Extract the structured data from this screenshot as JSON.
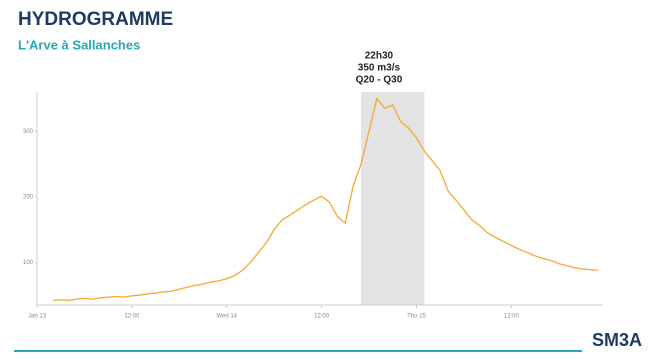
{
  "chart_data": {
    "type": "line",
    "title": "HYDROGRAMME",
    "subtitle": "L'Arve à Sallanches",
    "annotation": [
      "22h30",
      "350 m3/s",
      "Q20 - Q30"
    ],
    "highlight": [
      41,
      49
    ],
    "annotation_x": 43,
    "logo": "SM3A",
    "xlim": [
      0,
      71.6
    ],
    "ylim": [
      35,
      360
    ],
    "xticks": [
      {
        "value": 0,
        "label": "Jan 13"
      },
      {
        "value": 12,
        "label": "12:00"
      },
      {
        "value": 24,
        "label": "Wed 14"
      },
      {
        "value": 36,
        "label": "12:00"
      },
      {
        "value": 48,
        "label": "Thu 15"
      },
      {
        "value": 60,
        "label": "12:00"
      }
    ],
    "yticks": [
      100,
      200,
      300
    ],
    "series": [
      {
        "color": "#f6a932",
        "x": [
          2,
          3,
          4,
          5,
          6,
          7,
          8,
          9,
          10,
          11,
          12,
          13,
          14,
          15,
          16,
          17,
          18,
          19,
          20,
          21,
          22,
          23,
          24,
          25,
          26,
          27,
          28,
          29,
          30,
          31,
          32,
          33,
          34,
          35,
          36,
          37,
          38,
          39,
          40,
          41,
          42,
          43,
          44,
          45,
          46,
          47,
          48,
          49,
          50,
          51,
          52,
          53,
          54,
          55,
          56,
          57,
          58,
          59,
          60,
          61,
          62,
          63,
          64,
          65,
          66,
          67,
          68,
          69,
          70,
          71
        ],
        "values": [
          42,
          43,
          42,
          44,
          45,
          44,
          46,
          47,
          48,
          47,
          49,
          50,
          52,
          53,
          55,
          56,
          59,
          62,
          65,
          67,
          70,
          72,
          75,
          80,
          88,
          100,
          115,
          130,
          150,
          165,
          172,
          180,
          188,
          195,
          201,
          192,
          170,
          160,
          217,
          250,
          300,
          350,
          335,
          340,
          315,
          305,
          290,
          270,
          255,
          240,
          209,
          195,
          180,
          165,
          156,
          145,
          138,
          132,
          126,
          120,
          115,
          110,
          106,
          103,
          98,
          95,
          92,
          90,
          89,
          88
        ]
      }
    ]
  }
}
